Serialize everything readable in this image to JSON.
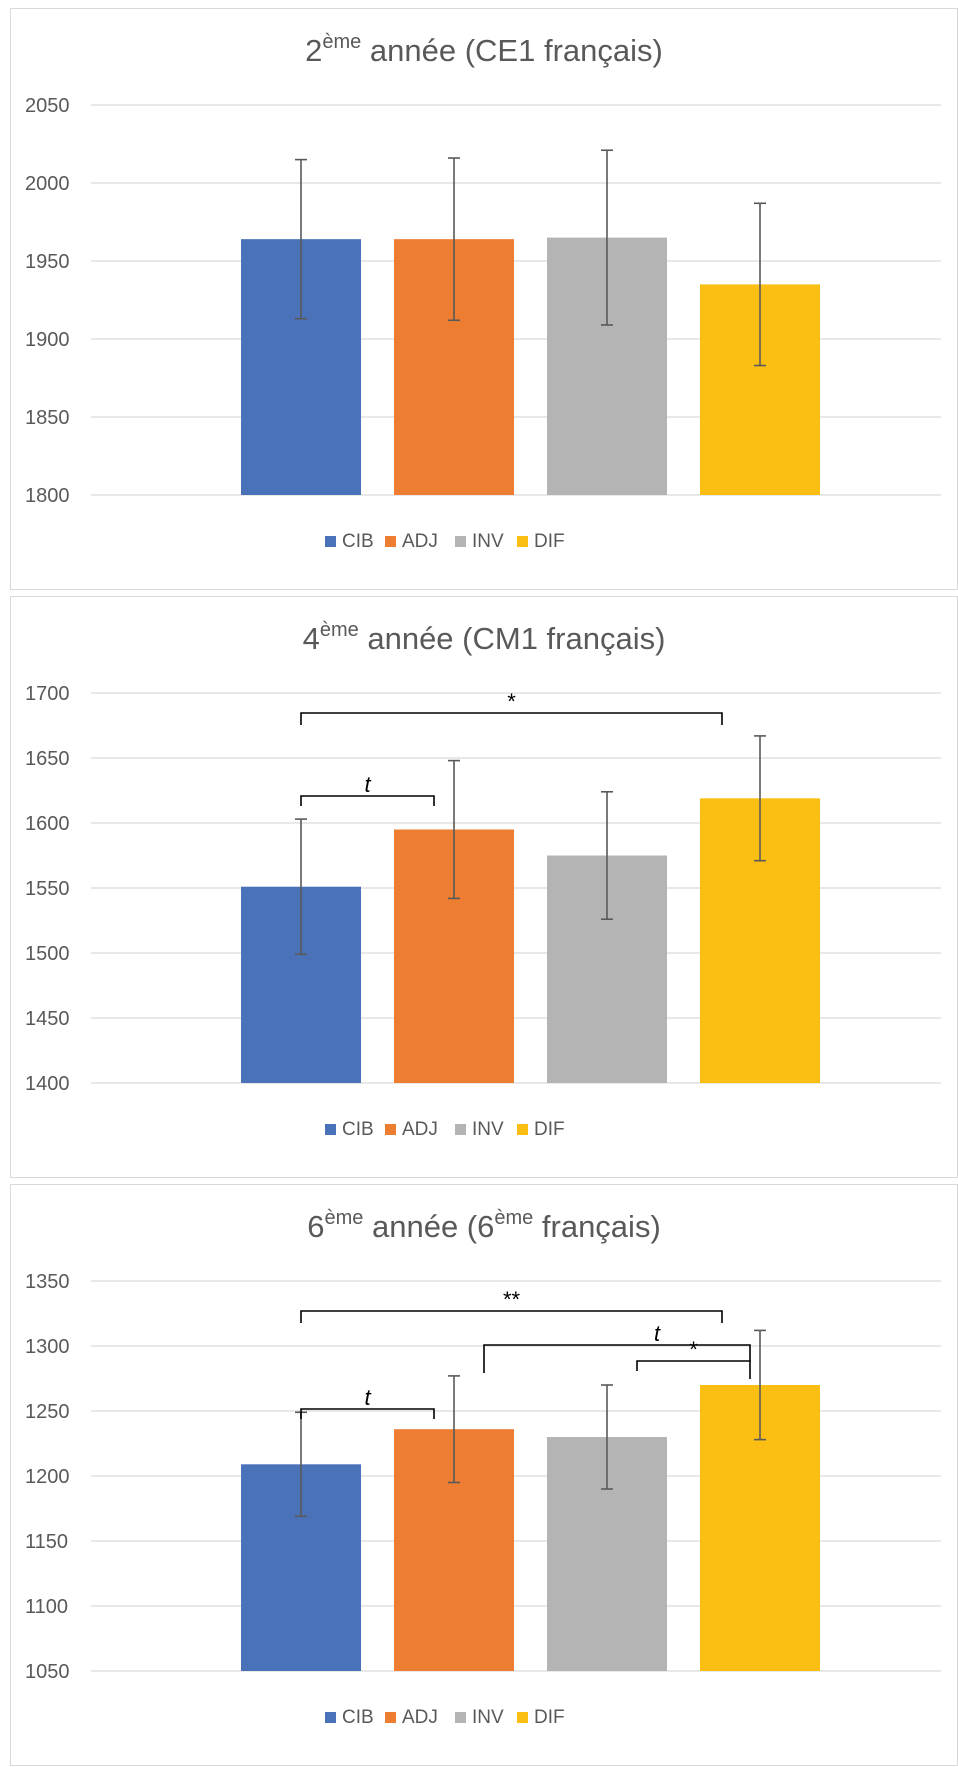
{
  "legend_colors": {
    "CIB": "#4a72b8",
    "ADJ": "#ed7d31",
    "INV": "#b4b4b4",
    "DIF": "#fbbf14"
  },
  "chart_data": [
    {
      "type": "bar",
      "title": {
        "prefix": "2",
        "sup": "ème",
        "mid": " année (CE1 français)",
        "sup2": "",
        "suffix": ""
      },
      "categories": [
        "CIB",
        "ADJ",
        "INV",
        "DIF"
      ],
      "values": [
        1964,
        1964,
        1965,
        1935
      ],
      "errors": [
        51,
        52,
        56,
        52
      ],
      "ylim": [
        1800,
        2050
      ],
      "yticks": [
        1800,
        1850,
        1900,
        1950,
        2000,
        2050
      ],
      "legend": [
        "CIB",
        "ADJ",
        "INV",
        "DIF"
      ],
      "legend_position": "bottom",
      "grid": true,
      "significance": []
    },
    {
      "type": "bar",
      "title": {
        "prefix": "4",
        "sup": "ème",
        "mid": " année (CM1 français)",
        "sup2": "",
        "suffix": ""
      },
      "categories": [
        "CIB",
        "ADJ",
        "INV",
        "DIF"
      ],
      "values": [
        1551,
        1595,
        1575,
        1619
      ],
      "errors": [
        52,
        53,
        49,
        48
      ],
      "ylim": [
        1400,
        1700
      ],
      "yticks": [
        1400,
        1450,
        1500,
        1550,
        1600,
        1650,
        1700
      ],
      "legend": [
        "CIB",
        "ADJ",
        "INV",
        "DIF"
      ],
      "legend_position": "bottom",
      "grid": true,
      "significance": [
        {
          "from": "CIB",
          "to": "DIF",
          "label": "*",
          "italic": false
        },
        {
          "from": "CIB",
          "to": "ADJ",
          "label": "t",
          "italic": true
        }
      ]
    },
    {
      "type": "bar",
      "title": {
        "prefix": "6",
        "sup": "ème",
        "mid": " année (6",
        "sup2": "ème",
        "suffix": " français)"
      },
      "categories": [
        "CIB",
        "ADJ",
        "INV",
        "DIF"
      ],
      "values": [
        1209,
        1236,
        1230,
        1270
      ],
      "errors": [
        40,
        41,
        40,
        42
      ],
      "ylim": [
        1050,
        1350
      ],
      "yticks": [
        1050,
        1100,
        1150,
        1200,
        1250,
        1300,
        1350
      ],
      "legend": [
        "CIB",
        "ADJ",
        "INV",
        "DIF"
      ],
      "legend_position": "bottom",
      "grid": true,
      "significance": [
        {
          "from": "CIB",
          "to": "DIF",
          "label": "**",
          "italic": false
        },
        {
          "from": "ADJ",
          "to": "DIF",
          "label": "t",
          "italic": true
        },
        {
          "from": "INV",
          "to": "DIF",
          "label": "*",
          "italic": false
        },
        {
          "from": "CIB",
          "to": "ADJ",
          "label": "t",
          "italic": true
        }
      ]
    }
  ]
}
